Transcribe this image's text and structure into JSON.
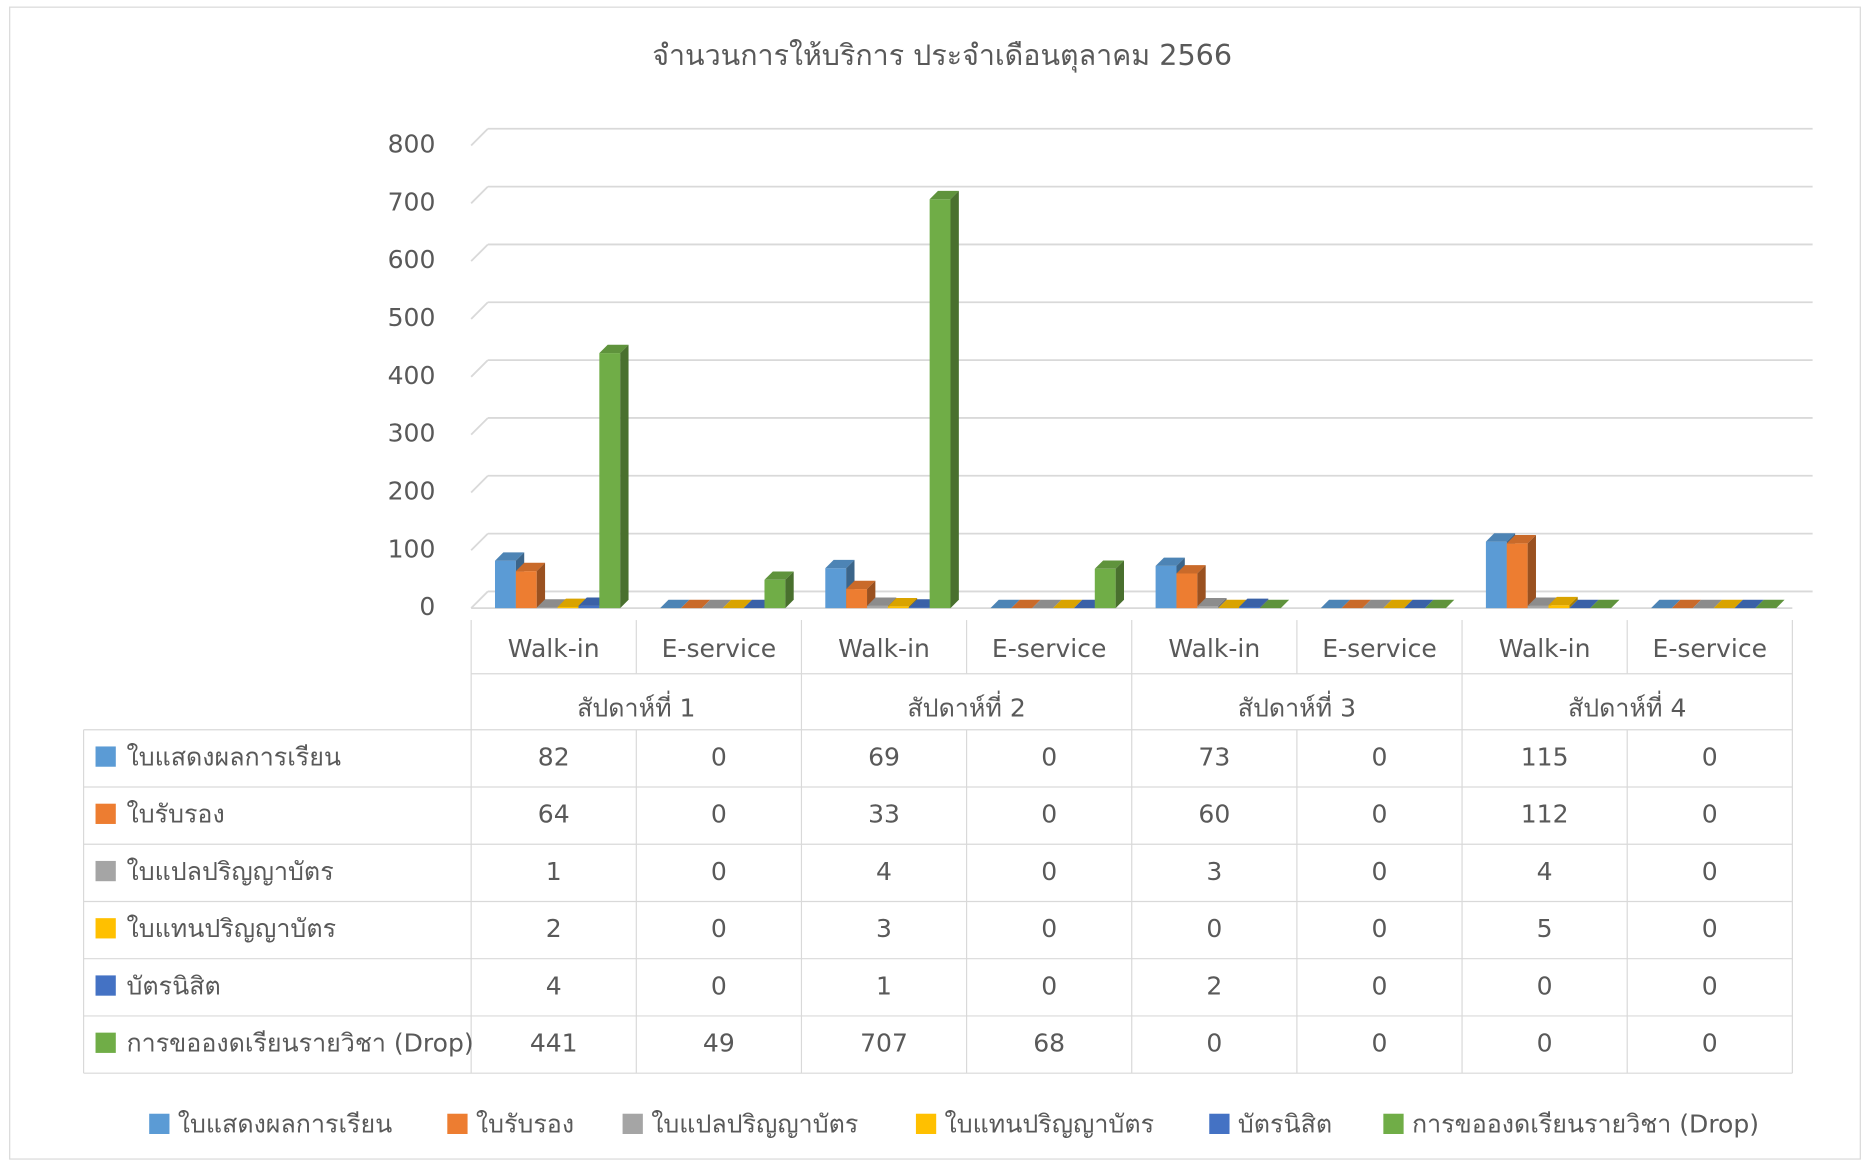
{
  "chart_data": {
    "type": "bar3d",
    "title": "จำนวนการให้บริการ ประจำเดือนตุลาคม 2566",
    "groups": [
      "สัปดาห์ที่ 1",
      "สัปดาห์ที่ 2",
      "สัปดาห์ที่ 3",
      "สัปดาห์ที่ 4"
    ],
    "categories": [
      "Walk-in",
      "E-service",
      "Walk-in",
      "E-service",
      "Walk-in",
      "E-service",
      "Walk-in",
      "E-service"
    ],
    "series": [
      {
        "name": "ใบแสดงผลการเรียน",
        "color": "#5b9bd5",
        "values": [
          82,
          0,
          69,
          0,
          73,
          0,
          115,
          0
        ]
      },
      {
        "name": "ใบรับรอง",
        "color": "#ed7d31",
        "values": [
          64,
          0,
          33,
          0,
          60,
          0,
          112,
          0
        ]
      },
      {
        "name": "ใบแปลปริญญาบัตร",
        "color": "#a5a5a5",
        "values": [
          1,
          0,
          4,
          0,
          3,
          0,
          4,
          0
        ]
      },
      {
        "name": "ใบแทนปริญญาบัตร",
        "color": "#ffc000",
        "values": [
          2,
          0,
          3,
          0,
          0,
          0,
          5,
          0
        ]
      },
      {
        "name": "บัตรนิสิต",
        "color": "#4472c4",
        "values": [
          4,
          0,
          1,
          0,
          2,
          0,
          0,
          0
        ]
      },
      {
        "name": "การขอองดเรียนรายวิชา (Drop)",
        "color": "#70ad47",
        "values": [
          441,
          49,
          707,
          68,
          0,
          0,
          0,
          0
        ]
      }
    ],
    "ylim": [
      0,
      800
    ],
    "yticks": [
      0,
      100,
      200,
      300,
      400,
      500,
      600,
      700,
      800
    ],
    "grid": true,
    "legend": "bottom",
    "data_table": true
  }
}
